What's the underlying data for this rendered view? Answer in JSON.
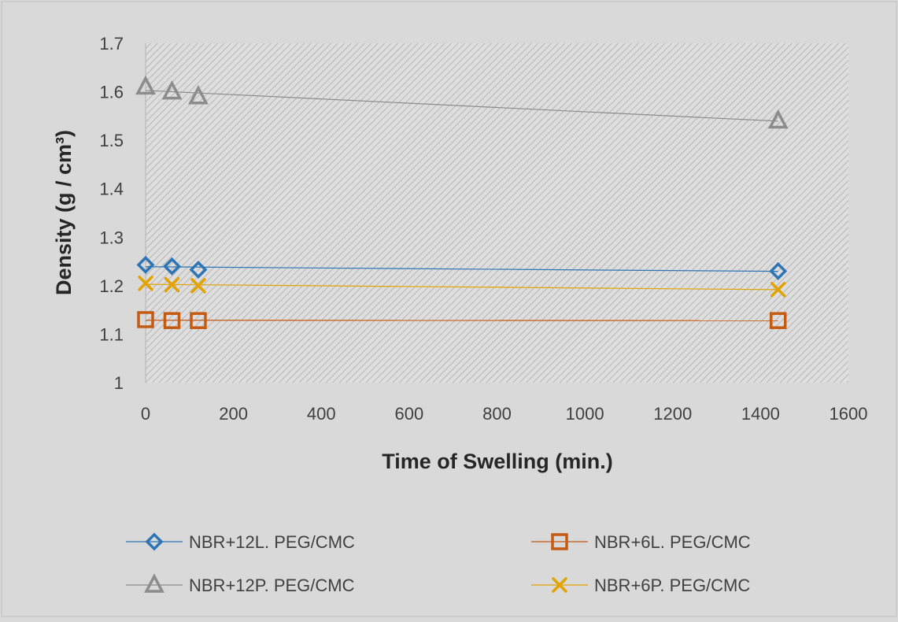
{
  "chart_data": {
    "type": "line",
    "xlabel": "Time of Swelling (min.)",
    "ylabel": "Density (g / cm³)",
    "xlim": [
      0,
      1600
    ],
    "ylim": [
      1,
      1.7
    ],
    "x_ticks": [
      "0",
      "200",
      "400",
      "600",
      "800",
      "1000",
      "1200",
      "1400",
      "1600"
    ],
    "y_ticks": [
      "1",
      "1.1",
      "1.2",
      "1.3",
      "1.4",
      "1.5",
      "1.6",
      "1.7"
    ],
    "grid": false,
    "legend_position": "bottom",
    "series": [
      {
        "name": "NBR+12L. PEG/CMC",
        "color": "#2e75b6",
        "marker": "diamond",
        "x": [
          0,
          60,
          120,
          1440
        ],
        "y": [
          1.243,
          1.24,
          1.233,
          1.23
        ]
      },
      {
        "name": "NBR+6L. PEG/CMC",
        "color": "#c55a11",
        "marker": "square",
        "x": [
          0,
          60,
          120,
          1440
        ],
        "y": [
          1.13,
          1.128,
          1.128,
          1.128
        ]
      },
      {
        "name": "NBR+12P. PEG/CMC",
        "color": "#8c8c8c",
        "marker": "triangle",
        "x": [
          0,
          60,
          120,
          1440
        ],
        "y": [
          1.61,
          1.6,
          1.59,
          1.54
        ]
      },
      {
        "name": "NBR+6P. PEG/CMC",
        "color": "#e2a300",
        "marker": "x",
        "x": [
          0,
          60,
          120,
          1440
        ],
        "y": [
          1.205,
          1.202,
          1.2,
          1.192
        ]
      }
    ]
  }
}
